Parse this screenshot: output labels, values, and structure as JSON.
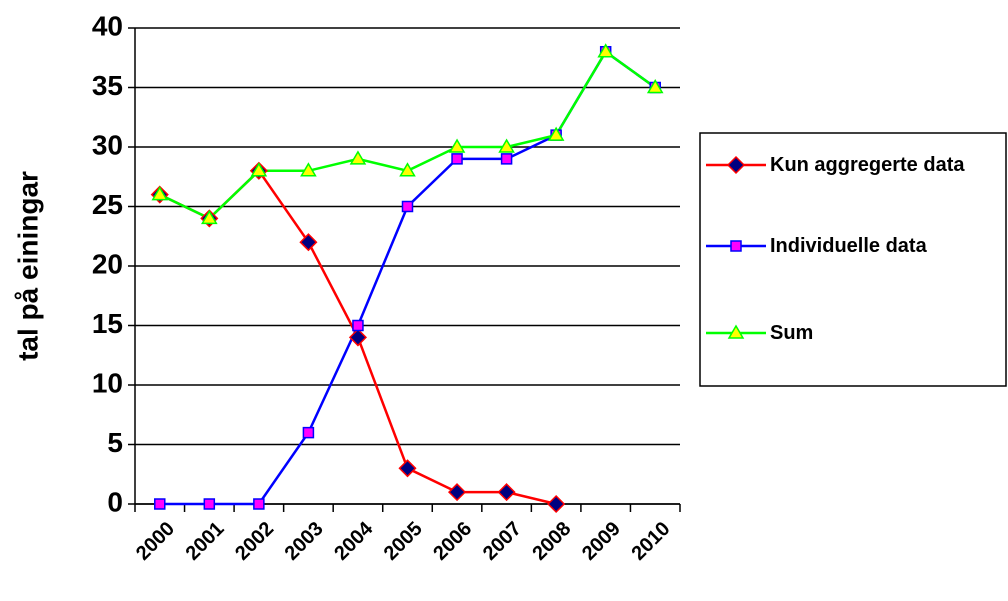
{
  "chart_data": {
    "type": "line",
    "y_label": "tal på einingar",
    "categories": [
      "2000",
      "2001",
      "2002",
      "2003",
      "2004",
      "2005",
      "2006",
      "2007",
      "2008",
      "2009",
      "2010"
    ],
    "series": [
      {
        "name": "Kun aggregerte data",
        "color": "#ff0000",
        "marker": "diamond",
        "marker_color": "#000080",
        "values": [
          26,
          24,
          28,
          22,
          14,
          3,
          1,
          1,
          0,
          null,
          null
        ]
      },
      {
        "name": "Individuelle data",
        "color": "#0000ff",
        "marker": "square",
        "marker_color": "#ff00ff",
        "values": [
          0,
          0,
          0,
          6,
          15,
          25,
          29,
          29,
          31,
          38,
          35
        ]
      },
      {
        "name": "Sum",
        "color": "#00ff00",
        "marker": "triangle",
        "marker_color": "#ffff00",
        "values": [
          26,
          24,
          28,
          28,
          29,
          28,
          30,
          30,
          31,
          38,
          35
        ]
      }
    ],
    "ylim": [
      0,
      40
    ],
    "yticks": [
      0,
      5,
      10,
      15,
      20,
      25,
      30,
      35,
      40
    ],
    "grid": true,
    "legend": "right"
  }
}
